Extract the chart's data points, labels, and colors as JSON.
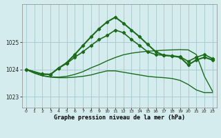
{
  "title": "Graphe pression niveau de la mer (hPa)",
  "bg_color": "#d4ecee",
  "grid_color": "#aacdd2",
  "line_color": "#1a6b1a",
  "ylim": [
    1022.6,
    1026.4
  ],
  "yticks": [
    1023,
    1024,
    1025
  ],
  "xlim": [
    -0.5,
    23.5
  ],
  "series": [
    {
      "x": [
        0,
        1,
        2,
        3,
        4,
        5,
        6,
        7,
        8,
        9,
        10,
        11,
        12,
        13,
        14,
        15,
        16,
        17,
        18,
        19,
        20,
        21,
        22,
        23
      ],
      "y": [
        1024.0,
        1023.87,
        1023.77,
        1023.73,
        1023.72,
        1023.75,
        1023.82,
        1023.92,
        1024.06,
        1024.18,
        1024.32,
        1024.44,
        1024.54,
        1024.6,
        1024.64,
        1024.67,
        1024.69,
        1024.71,
        1024.72,
        1024.73,
        1024.72,
        1024.55,
        1023.75,
        1023.2
      ],
      "marker": false,
      "lw": 1.0
    },
    {
      "x": [
        0,
        1,
        2,
        3,
        4,
        5,
        6,
        7,
        8,
        9,
        10,
        11,
        12,
        13,
        14,
        15,
        16,
        17,
        18,
        19,
        20,
        21,
        22,
        23
      ],
      "y": [
        1024.0,
        1023.87,
        1023.77,
        1023.72,
        1023.7,
        1023.7,
        1023.72,
        1023.75,
        1023.8,
        1023.88,
        1023.95,
        1023.95,
        1023.9,
        1023.85,
        1023.8,
        1023.75,
        1023.72,
        1023.7,
        1023.67,
        1023.6,
        1023.45,
        1023.25,
        1023.15,
        1023.15
      ],
      "marker": false,
      "lw": 1.0
    },
    {
      "x": [
        0,
        2,
        3,
        4,
        5,
        6,
        7,
        8,
        9,
        10,
        11,
        12,
        13,
        14,
        15,
        16,
        17,
        18,
        19,
        20,
        21,
        22,
        23
      ],
      "y": [
        1024.0,
        1023.83,
        1023.82,
        1024.05,
        1024.22,
        1024.45,
        1024.65,
        1024.88,
        1025.1,
        1025.25,
        1025.45,
        1025.35,
        1025.1,
        1024.88,
        1024.65,
        1024.55,
        1024.52,
        1024.5,
        1024.47,
        1024.3,
        1024.45,
        1024.55,
        1024.4
      ],
      "marker": true,
      "lw": 1.2
    },
    {
      "x": [
        0,
        2,
        3,
        4,
        5,
        6,
        7,
        8,
        9,
        10,
        11,
        12,
        13,
        14,
        15,
        16,
        17,
        18,
        19,
        20,
        21,
        22,
        23
      ],
      "y": [
        1024.0,
        1023.83,
        1023.82,
        1024.05,
        1024.25,
        1024.55,
        1024.88,
        1025.2,
        1025.5,
        1025.75,
        1025.92,
        1025.7,
        1025.45,
        1025.2,
        1024.92,
        1024.65,
        1024.52,
        1024.5,
        1024.45,
        1024.17,
        1024.35,
        1024.45,
        1024.35
      ],
      "marker": true,
      "lw": 1.5
    }
  ]
}
